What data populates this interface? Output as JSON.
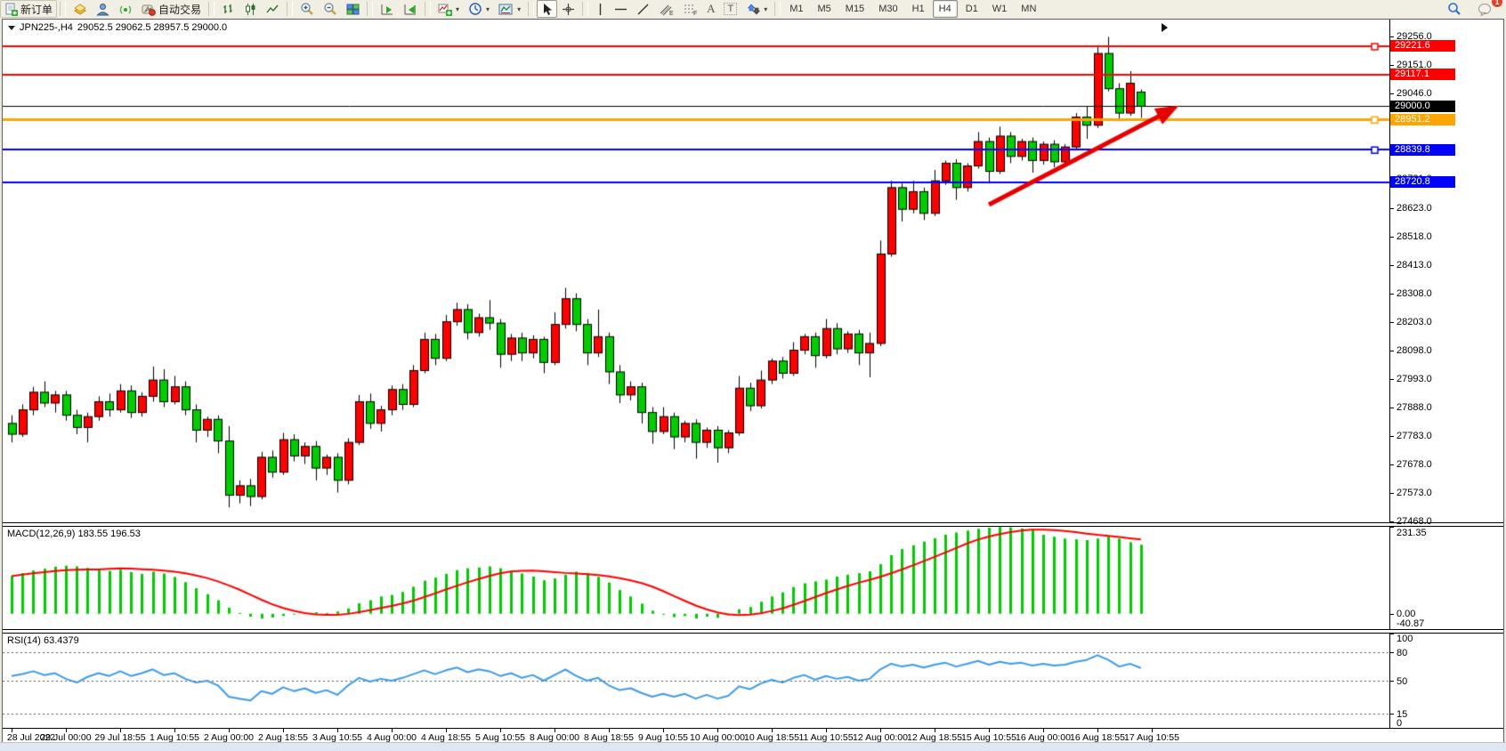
{
  "toolbar": {
    "buttons": {
      "new_order": "新订单",
      "autotrading": "自动交易"
    },
    "timeframes": [
      "M1",
      "M5",
      "M15",
      "M30",
      "H1",
      "H4",
      "D1",
      "W1",
      "MN"
    ],
    "active_timeframe": "H4",
    "notification_badge": "1",
    "icon_names": [
      "new-order-icon",
      "symbols-icon",
      "profile-icon",
      "signals-icon",
      "autotrading-icon",
      "bar-chart-icon",
      "candlestick-chart-icon",
      "line-chart-icon",
      "zoom-in-icon",
      "zoom-out-icon",
      "tile-windows-icon",
      "auto-scroll-icon",
      "chart-shift-icon",
      "indicators-icon",
      "periods-icon",
      "templates-icon",
      "cursor-icon",
      "crosshair-icon",
      "vertical-line-icon",
      "horizontal-line-icon",
      "trendline-icon",
      "channel-icon",
      "fibonacci-icon",
      "text-icon",
      "label-icon",
      "arrows-icon",
      "search-icon",
      "chat-icon"
    ]
  },
  "chart_header": {
    "symbol_period": "JPN225-,H4",
    "ohlc_text": "29052.5 29062.5 28957.5 29000.0",
    "open": "29052.5",
    "high": "29062.5",
    "low": "28957.5",
    "close": "29000.0"
  },
  "indicators": {
    "macd_label": "MACD(12,26,9)",
    "macd_values": "183.55 196.53",
    "rsi_label": "RSI(14)",
    "rsi_value": "63.4379"
  },
  "chart_data": [
    {
      "type": "candlestick",
      "title": "JPN225-,H4",
      "timeframe": "H4",
      "up_color": "#ff0000",
      "down_color": "#00cc00",
      "ylim": [
        27465,
        29320
      ],
      "y_ticks": [
        29256.0,
        29151.0,
        29046.0,
        28941.0,
        28836.0,
        28731.0,
        28623.0,
        28518.0,
        28413.0,
        28308.0,
        28203.0,
        28098.0,
        27993.0,
        27888.0,
        27783.0,
        27678.0,
        27573.0,
        27468.0
      ],
      "levels": [
        {
          "value": 29221.6,
          "color": "#ff0000",
          "width": 2,
          "handle": true
        },
        {
          "value": 29117.1,
          "color": "#ff0000",
          "width": 2,
          "handle": false
        },
        {
          "value": 29000.0,
          "color": "#000000",
          "width": 1,
          "handle": false,
          "current_price": true
        },
        {
          "value": 28951.2,
          "color": "#ffa500",
          "width": 3,
          "handle": true
        },
        {
          "value": 28839.8,
          "color": "#0000ff",
          "width": 2,
          "handle": true
        },
        {
          "value": 28720.8,
          "color": "#0000ff",
          "width": 2,
          "handle": false
        }
      ],
      "x_labels": [
        "28 Jul 2022",
        "29 Jul 00:00",
        "29 Jul 18:55",
        "1 Aug 10:55",
        "2 Aug 00:00",
        "2 Aug 18:55",
        "3 Aug 10:55",
        "4 Aug 00:00",
        "4 Aug 18:55",
        "5 Aug 10:55",
        "8 Aug 00:00",
        "8 Aug 18:55",
        "9 Aug 10:55",
        "10 Aug 00:00",
        "10 Aug 18:55",
        "11 Aug 10:55",
        "12 Aug 00:00",
        "12 Aug 18:55",
        "15 Aug 10:55",
        "16 Aug 00:00",
        "16 Aug 18:55",
        "17 Aug 10:55"
      ],
      "x_label_step": 5,
      "trend_arrow": {
        "color": "#e60000",
        "from_index": 90,
        "from_price": 28637,
        "to_index": 107.5,
        "to_price": 29002
      },
      "candles": [
        [
          27830,
          27860,
          27760,
          27790
        ],
        [
          27790,
          27900,
          27780,
          27880
        ],
        [
          27880,
          27965,
          27860,
          27945
        ],
        [
          27945,
          27985,
          27890,
          27905
        ],
        [
          27905,
          27950,
          27870,
          27935
        ],
        [
          27935,
          27950,
          27840,
          27860
        ],
        [
          27860,
          27880,
          27790,
          27815
        ],
        [
          27815,
          27870,
          27760,
          27855
        ],
        [
          27855,
          27930,
          27840,
          27910
        ],
        [
          27910,
          27940,
          27855,
          27880
        ],
        [
          27880,
          27975,
          27870,
          27950
        ],
        [
          27950,
          27970,
          27850,
          27870
        ],
        [
          27870,
          27945,
          27855,
          27930
        ],
        [
          27930,
          28040,
          27910,
          27990
        ],
        [
          27990,
          28030,
          27890,
          27910
        ],
        [
          27910,
          28005,
          27900,
          27965
        ],
        [
          27965,
          27985,
          27860,
          27880
        ],
        [
          27880,
          27900,
          27760,
          27805
        ],
        [
          27805,
          27855,
          27780,
          27845
        ],
        [
          27845,
          27860,
          27720,
          27765
        ],
        [
          27765,
          27820,
          27520,
          27565
        ],
        [
          27565,
          27620,
          27535,
          27600
        ],
        [
          27600,
          27625,
          27525,
          27560
        ],
        [
          27560,
          27725,
          27550,
          27705
        ],
        [
          27705,
          27730,
          27630,
          27650
        ],
        [
          27650,
          27795,
          27640,
          27770
        ],
        [
          27770,
          27790,
          27690,
          27710
        ],
        [
          27710,
          27760,
          27680,
          27745
        ],
        [
          27745,
          27765,
          27620,
          27665
        ],
        [
          27665,
          27715,
          27640,
          27705
        ],
        [
          27705,
          27720,
          27575,
          27620
        ],
        [
          27620,
          27775,
          27605,
          27760
        ],
        [
          27760,
          27935,
          27750,
          27910
        ],
        [
          27910,
          27940,
          27810,
          27830
        ],
        [
          27830,
          27895,
          27800,
          27880
        ],
        [
          27880,
          27970,
          27860,
          27955
        ],
        [
          27955,
          27975,
          27880,
          27900
        ],
        [
          27900,
          28045,
          27890,
          28025
        ],
        [
          28025,
          28165,
          28015,
          28140
        ],
        [
          28140,
          28160,
          28045,
          28070
        ],
        [
          28070,
          28230,
          28060,
          28205
        ],
        [
          28205,
          28275,
          28190,
          28250
        ],
        [
          28250,
          28270,
          28140,
          28165
        ],
        [
          28165,
          28235,
          28150,
          28220
        ],
        [
          28220,
          28285,
          28175,
          28200
        ],
        [
          28200,
          28215,
          28035,
          28085
        ],
        [
          28085,
          28160,
          28060,
          28145
        ],
        [
          28145,
          28165,
          28060,
          28090
        ],
        [
          28090,
          28155,
          28070,
          28140
        ],
        [
          28140,
          28150,
          28015,
          28055
        ],
        [
          28055,
          28240,
          28045,
          28195
        ],
        [
          28195,
          28330,
          28180,
          28290
        ],
        [
          28290,
          28310,
          28170,
          28195
        ],
        [
          28195,
          28215,
          28045,
          28090
        ],
        [
          28090,
          28250,
          28075,
          28150
        ],
        [
          28150,
          28165,
          27975,
          28020
        ],
        [
          28020,
          28045,
          27905,
          27935
        ],
        [
          27935,
          27985,
          27915,
          27965
        ],
        [
          27965,
          27980,
          27830,
          27870
        ],
        [
          27870,
          27890,
          27755,
          27800
        ],
        [
          27800,
          27890,
          27790,
          27855
        ],
        [
          27855,
          27870,
          27735,
          27780
        ],
        [
          27780,
          27840,
          27760,
          27830
        ],
        [
          27830,
          27845,
          27700,
          27760
        ],
        [
          27760,
          27815,
          27740,
          27805
        ],
        [
          27805,
          27820,
          27685,
          27740
        ],
        [
          27740,
          27805,
          27720,
          27795
        ],
        [
          27795,
          28005,
          27785,
          27960
        ],
        [
          27960,
          27980,
          27875,
          27895
        ],
        [
          27895,
          28025,
          27885,
          27990
        ],
        [
          27990,
          28070,
          27975,
          28060
        ],
        [
          28060,
          28075,
          27995,
          28015
        ],
        [
          28015,
          28130,
          28005,
          28100
        ],
        [
          28100,
          28160,
          28085,
          28150
        ],
        [
          28150,
          28165,
          28035,
          28080
        ],
        [
          28080,
          28215,
          28070,
          28180
        ],
        [
          28180,
          28200,
          28085,
          28105
        ],
        [
          28105,
          28170,
          28090,
          28160
        ],
        [
          28160,
          28175,
          28045,
          28090
        ],
        [
          28090,
          28165,
          28000,
          28125
        ],
        [
          28125,
          28505,
          28115,
          28455
        ],
        [
          28455,
          28725,
          28445,
          28700
        ],
        [
          28700,
          28715,
          28575,
          28620
        ],
        [
          28620,
          28725,
          28605,
          28685
        ],
        [
          28685,
          28700,
          28580,
          28605
        ],
        [
          28605,
          28765,
          28595,
          28725
        ],
        [
          28725,
          28800,
          28710,
          28790
        ],
        [
          28790,
          28805,
          28655,
          28700
        ],
        [
          28700,
          28790,
          28685,
          28780
        ],
        [
          28780,
          28905,
          28770,
          28870
        ],
        [
          28870,
          28885,
          28715,
          28760
        ],
        [
          28760,
          28925,
          28750,
          28890
        ],
        [
          28890,
          28905,
          28790,
          28815
        ],
        [
          28815,
          28880,
          28800,
          28870
        ],
        [
          28870,
          28885,
          28755,
          28800
        ],
        [
          28800,
          28870,
          28785,
          28860
        ],
        [
          28860,
          28875,
          28775,
          28795
        ],
        [
          28795,
          28860,
          28780,
          28850
        ],
        [
          28850,
          28975,
          28840,
          28960
        ],
        [
          28960,
          29000,
          28880,
          28930
        ],
        [
          28930,
          29225,
          28920,
          29195
        ],
        [
          29195,
          29256,
          29055,
          29065
        ],
        [
          29065,
          29085,
          28945,
          28975
        ],
        [
          28975,
          29130,
          28965,
          29085
        ],
        [
          29052.5,
          29062.5,
          28957.5,
          29000.0
        ]
      ]
    },
    {
      "type": "bar",
      "name": "MACD(12,26,9)",
      "current_values": [
        183.55,
        196.53
      ],
      "ylim": [
        -40.87,
        231.35
      ],
      "y_ticks": [
        231.35,
        0.0,
        -40.87
      ],
      "histogram_color": "#00cc00",
      "signal_color": "#ff0000",
      "signal_period": 9,
      "histogram": [
        100,
        108,
        115,
        120,
        125,
        128,
        126,
        122,
        118,
        114,
        117,
        111,
        106,
        112,
        107,
        98,
        84,
        68,
        52,
        36,
        16,
        2,
        -8,
        -13,
        -10,
        -6,
        -2,
        2,
        4,
        2,
        6,
        14,
        28,
        36,
        46,
        50,
        58,
        72,
        88,
        96,
        106,
        116,
        121,
        123,
        126,
        121,
        114,
        107,
        99,
        89,
        94,
        104,
        112,
        108,
        98,
        83,
        63,
        46,
        27,
        8,
        -2,
        -9,
        -6,
        -13,
        -8,
        -11,
        -4,
        12,
        18,
        32,
        46,
        57,
        71,
        81,
        86,
        91,
        99,
        104,
        108,
        113,
        132,
        156,
        172,
        182,
        192,
        201,
        210,
        216,
        221,
        226,
        229,
        231,
        230,
        227,
        222,
        210,
        205,
        200,
        198,
        196,
        200,
        205,
        200,
        190,
        183.55
      ]
    },
    {
      "type": "line",
      "name": "RSI(14)",
      "current_value": 63.4379,
      "ylim": [
        0,
        100
      ],
      "levels": [
        80,
        50,
        15
      ],
      "y_ticks": [
        100,
        80,
        50,
        15,
        0
      ],
      "line_color": "#3d9be9",
      "values": [
        55,
        57,
        60,
        56,
        58,
        52,
        48,
        54,
        58,
        55,
        60,
        55,
        58,
        62,
        56,
        58,
        52,
        48,
        50,
        45,
        33,
        31,
        29,
        39,
        36,
        43,
        39,
        42,
        37,
        40,
        35,
        45,
        53,
        49,
        52,
        50,
        53,
        57,
        61,
        57,
        61,
        64,
        59,
        62,
        60,
        55,
        58,
        53,
        56,
        50,
        56,
        62,
        55,
        50,
        53,
        45,
        40,
        42,
        37,
        33,
        36,
        33,
        36,
        31,
        35,
        31,
        34,
        44,
        41,
        47,
        51,
        48,
        53,
        56,
        51,
        55,
        52,
        54,
        50,
        52,
        62,
        68,
        65,
        67,
        64,
        67,
        69,
        65,
        68,
        71,
        67,
        70,
        68,
        69,
        66,
        68,
        66,
        67,
        70,
        72,
        77,
        72,
        65,
        68,
        63.44
      ]
    }
  ]
}
